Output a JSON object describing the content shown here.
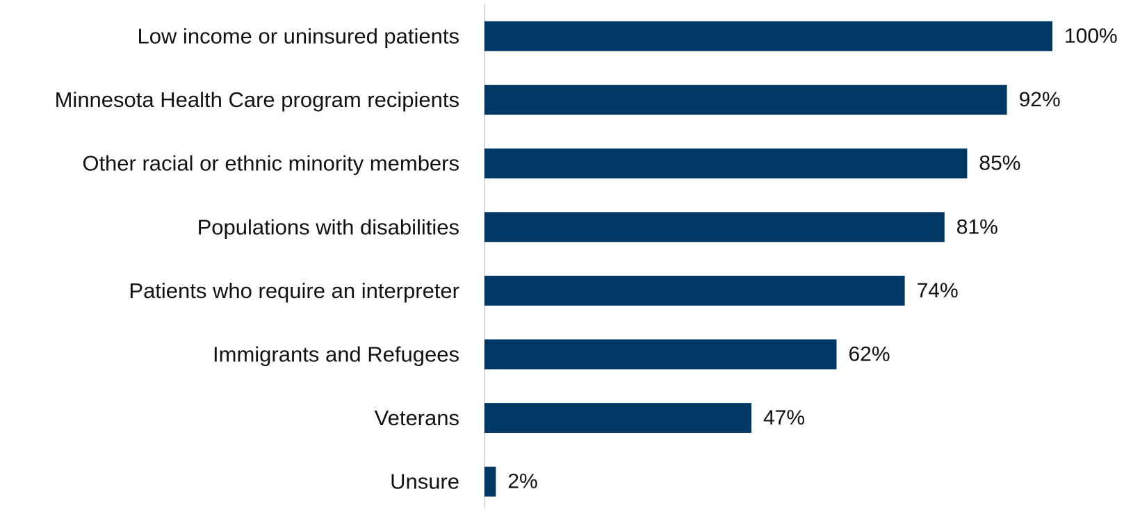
{
  "chart_data": {
    "type": "bar",
    "orientation": "horizontal",
    "categories": [
      "Low income or uninsured patients",
      "Minnesota Health Care program recipients",
      "Other racial or ethnic minority members",
      "Populations with disabilities",
      "Patients who require an interpreter",
      "Immigrants and Refugees",
      "Veterans",
      "Unsure"
    ],
    "values": [
      100,
      92,
      85,
      81,
      74,
      62,
      47,
      2
    ],
    "data_labels": [
      "100%",
      "92%",
      "85%",
      "81%",
      "74%",
      "62%",
      "47%",
      "2%"
    ],
    "unit": "%",
    "xlim": [
      0,
      100
    ],
    "grid": false,
    "legend": "none",
    "bar_color": "#003865",
    "axis_color": "#d9d9d9"
  }
}
